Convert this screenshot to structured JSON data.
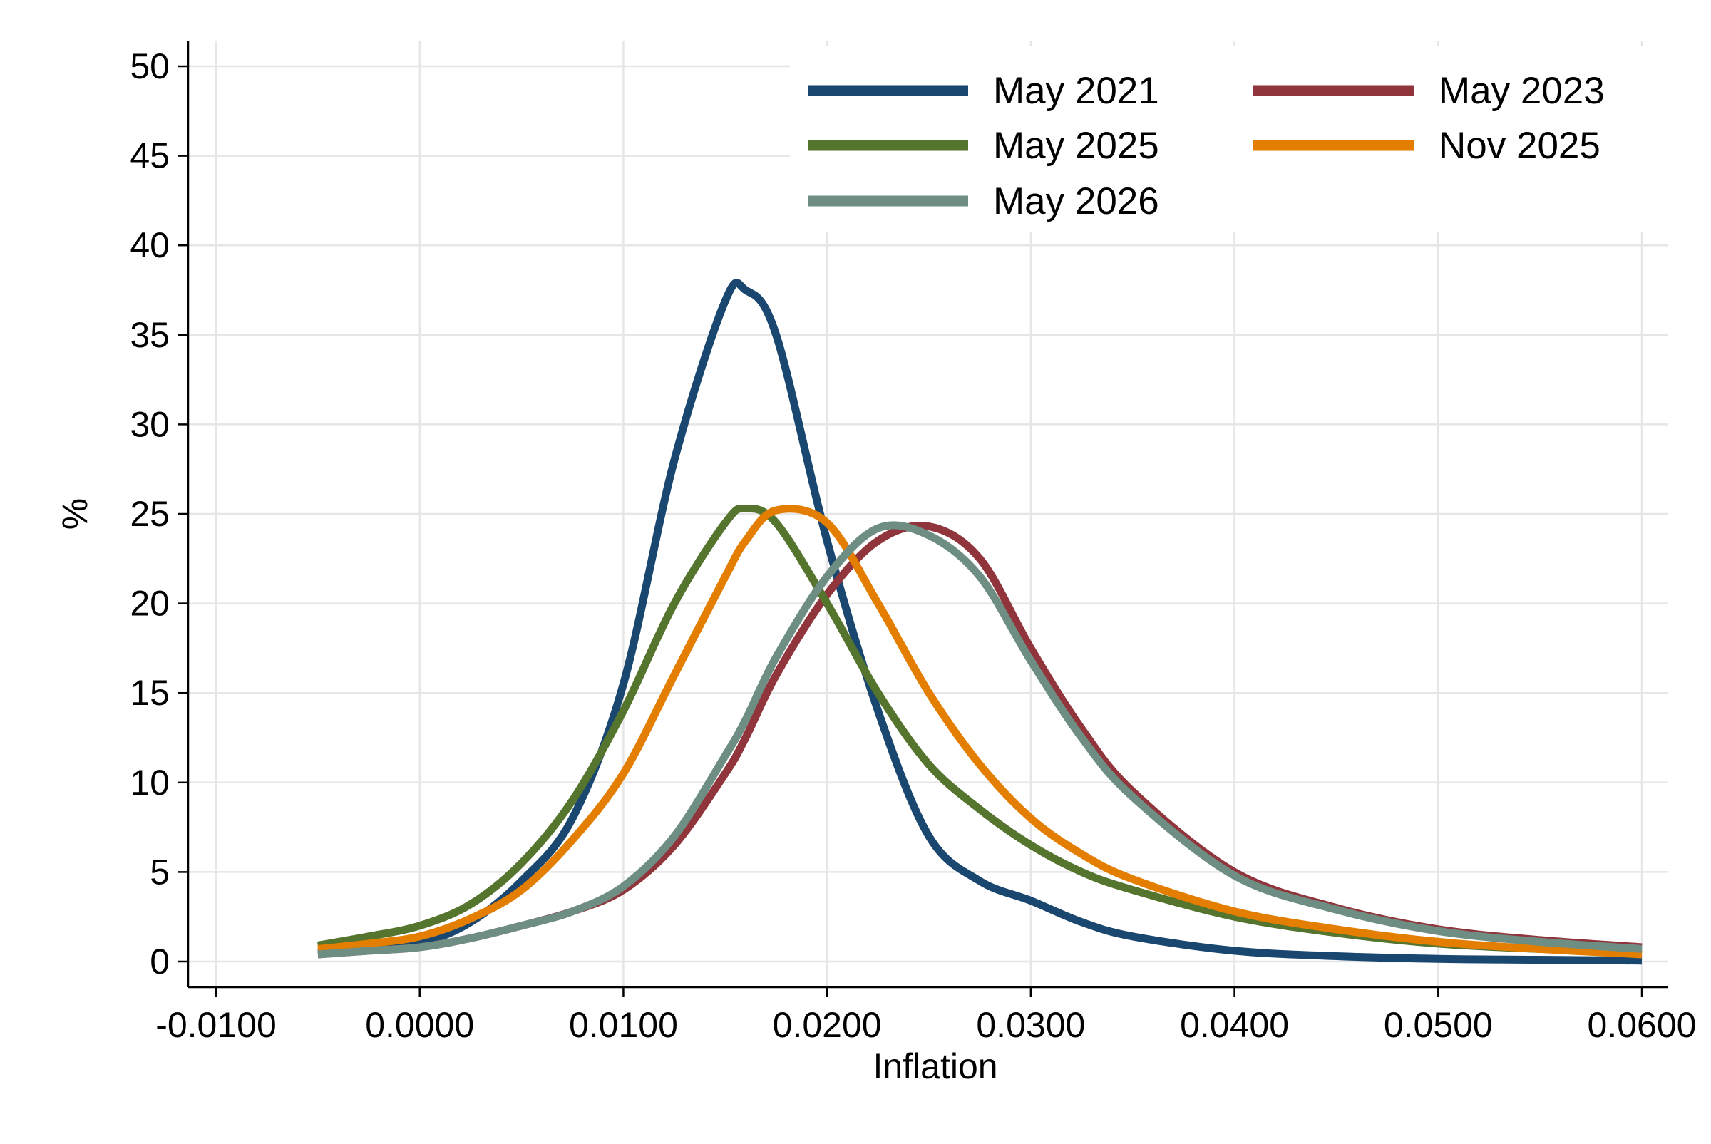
{
  "chart_data": {
    "type": "line",
    "title": "",
    "xlabel": "Inflation",
    "ylabel": "%",
    "xlim": [
      -0.01,
      0.06
    ],
    "ylim": [
      0,
      50
    ],
    "x_ticks": [
      "-0.0100",
      "0.0000",
      "0.0100",
      "0.0200",
      "0.0300",
      "0.0400",
      "0.0500",
      "0.0600"
    ],
    "y_ticks": [
      "0",
      "5",
      "10",
      "15",
      "20",
      "25",
      "30",
      "35",
      "40",
      "45",
      "50"
    ],
    "grid": true,
    "legend_position": "top-right",
    "x": [
      -0.005,
      -0.0025,
      0.0,
      0.0025,
      0.005,
      0.0075,
      0.01,
      0.0125,
      0.015,
      0.016,
      0.0175,
      0.02,
      0.0225,
      0.025,
      0.0275,
      0.03,
      0.0325,
      0.035,
      0.04,
      0.045,
      0.05,
      0.055,
      0.06
    ],
    "series": [
      {
        "name": "May 2021",
        "color": "#1a476f",
        "values": [
          0.5,
          0.7,
          1.0,
          2.2,
          4.5,
          8.0,
          15.5,
          28.0,
          36.9,
          37.5,
          35.0,
          23.5,
          14.0,
          7.0,
          4.5,
          3.4,
          2.2,
          1.4,
          0.6,
          0.3,
          0.15,
          0.1,
          0.05
        ]
      },
      {
        "name": "May 2023",
        "color": "#90353b",
        "values": [
          0.4,
          0.6,
          0.8,
          1.3,
          2.0,
          2.8,
          4.0,
          6.5,
          10.5,
          12.5,
          16.0,
          20.5,
          23.5,
          24.3,
          22.5,
          17.5,
          13.0,
          9.5,
          5.0,
          3.0,
          1.8,
          1.2,
          0.8
        ]
      },
      {
        "name": "May 2025",
        "color": "#55752f",
        "values": [
          0.9,
          1.4,
          2.0,
          3.2,
          5.5,
          9.0,
          14.0,
          20.0,
          24.5,
          25.3,
          24.5,
          20.0,
          15.0,
          11.0,
          8.5,
          6.5,
          5.0,
          4.0,
          2.5,
          1.6,
          1.0,
          0.7,
          0.5
        ]
      },
      {
        "name": "Nov 2025",
        "color": "#e37e00",
        "values": [
          0.7,
          1.0,
          1.4,
          2.4,
          4.0,
          6.8,
          10.5,
          16.0,
          21.5,
          23.5,
          25.2,
          24.5,
          20.0,
          15.0,
          11.0,
          8.0,
          6.0,
          4.6,
          2.8,
          1.8,
          1.1,
          0.7,
          0.4
        ]
      },
      {
        "name": "May 2026",
        "color": "#6e8e84",
        "values": [
          0.4,
          0.6,
          0.8,
          1.3,
          2.0,
          2.8,
          4.2,
          7.0,
          11.5,
          13.5,
          17.0,
          21.5,
          24.2,
          23.8,
          21.5,
          16.8,
          12.5,
          9.2,
          4.8,
          2.9,
          1.7,
          1.1,
          0.7
        ]
      }
    ],
    "legend_order": [
      "May 2021",
      "May 2023",
      "May 2025",
      "Nov 2025",
      "May 2026"
    ]
  }
}
